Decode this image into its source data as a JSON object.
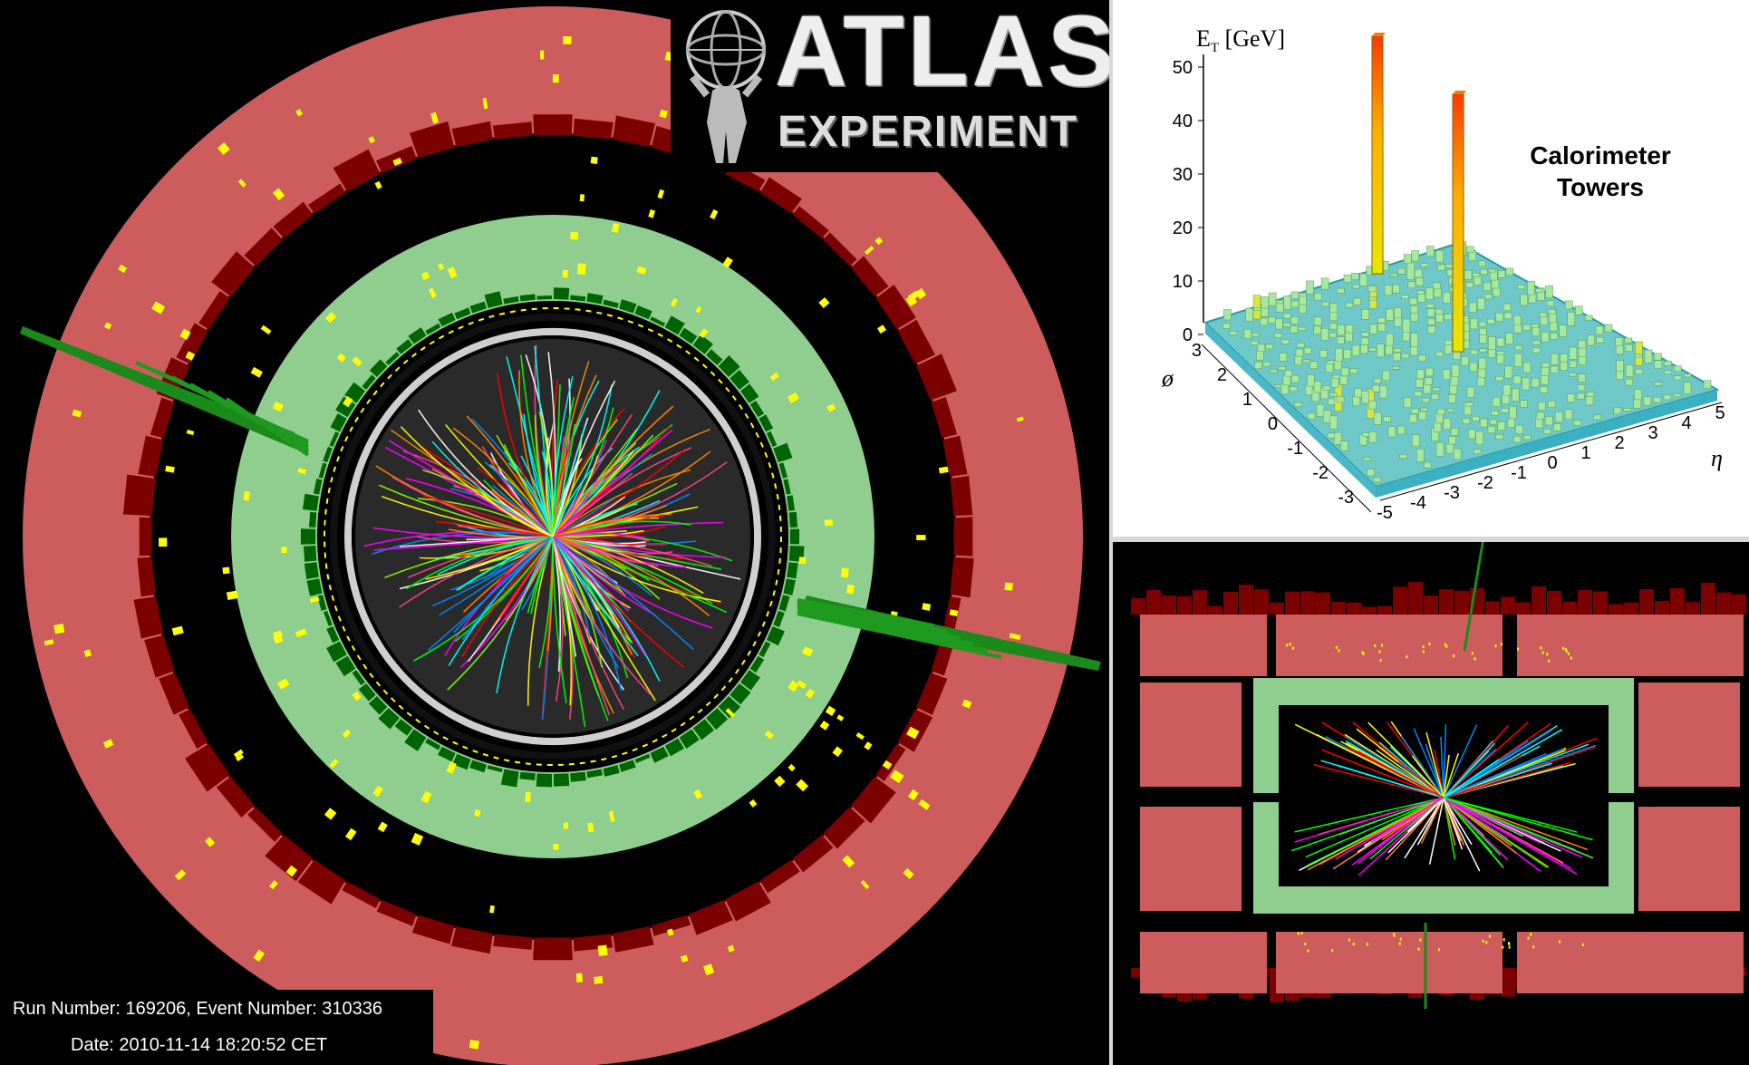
{
  "logo": {
    "title": "ATLAS",
    "subtitle": "EXPERIMENT"
  },
  "event_info": {
    "run_line": "Run Number: 169206, Event Number: 310336",
    "date_line": "Date: 2010-11-14 18:20:52 CET"
  },
  "lego_plot": {
    "box_label_line1": "Calorimeter",
    "box_label_line2": "Towers",
    "z_axis_label": "E",
    "z_axis_sub": "T",
    "z_axis_unit": "[GeV]",
    "z_ticks": [
      "50",
      "40",
      "30",
      "20",
      "10",
      "0"
    ],
    "phi_label": "ø",
    "phi_ticks": [
      "3",
      "2",
      "1",
      "0",
      "-1",
      "-2",
      "-3"
    ],
    "eta_label": "η",
    "eta_ticks": [
      "-5",
      "-4",
      "-3",
      "-2",
      "-1",
      "0",
      "1",
      "2",
      "3",
      "4",
      "5"
    ]
  },
  "colors": {
    "hadronic_calorimeter": "#cd5c5c",
    "em_calorimeter": "#8fce8f",
    "energy_deposit_dark": "#7b0000",
    "energy_deposit_green": "#006400",
    "muon_hits": "#ffff00",
    "background": "#000000"
  }
}
